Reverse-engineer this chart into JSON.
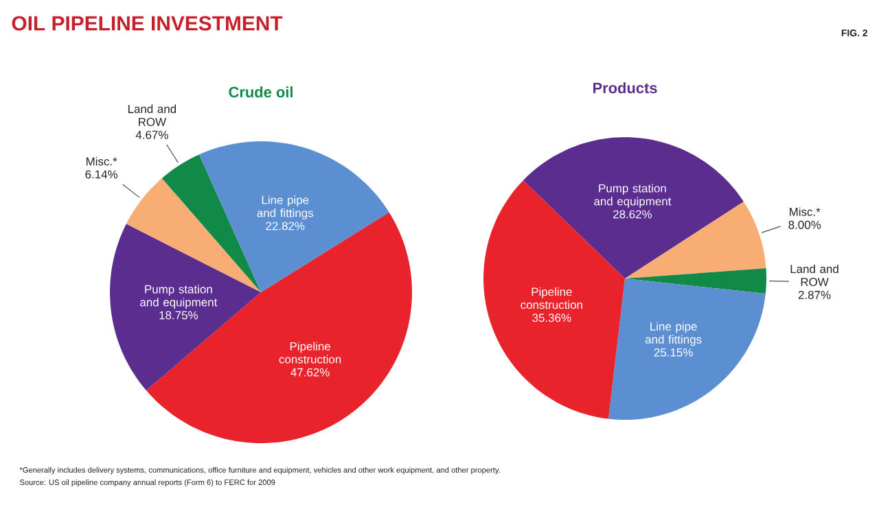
{
  "chart_data": [
    {
      "type": "pie",
      "title": "Crude oil",
      "categories": [
        "Pipeline construction",
        "Pump station and equipment",
        "Misc.*",
        "Land and ROW",
        "Line pipe and fittings"
      ],
      "values": [
        47.62,
        18.75,
        6.14,
        4.67,
        22.82
      ],
      "value_labels": [
        "47.62%",
        "18.75%",
        "6.14%",
        "4.67%",
        "22.82%"
      ],
      "colors": [
        "#e8232b",
        "#5a2d8f",
        "#f8ad74",
        "#118a47",
        "#5b8fd1"
      ],
      "annotations": [
        "OIL PIPELINE INVESTMENT",
        "FIG. 2",
        "*Generally includes delivery systems, communications, office furniture and equipment, vehicles and other work equipment, and other property.",
        "Source: US oil pipeline company annual reports (Form 6) to FERC for 2009"
      ]
    },
    {
      "type": "pie",
      "title": "Products",
      "categories": [
        "Pump station and equipment",
        "Misc.*",
        "Land and ROW",
        "Line pipe and fittings",
        "Pipeline construction"
      ],
      "values": [
        28.62,
        8.0,
        2.87,
        25.15,
        35.36
      ],
      "value_labels": [
        "28.62%",
        "8.00%",
        "2.87%",
        "25.15%",
        "35.36%"
      ],
      "colors": [
        "#5a2d8f",
        "#f8ad74",
        "#118a47",
        "#5b8fd1",
        "#e8232b"
      ]
    }
  ]
}
